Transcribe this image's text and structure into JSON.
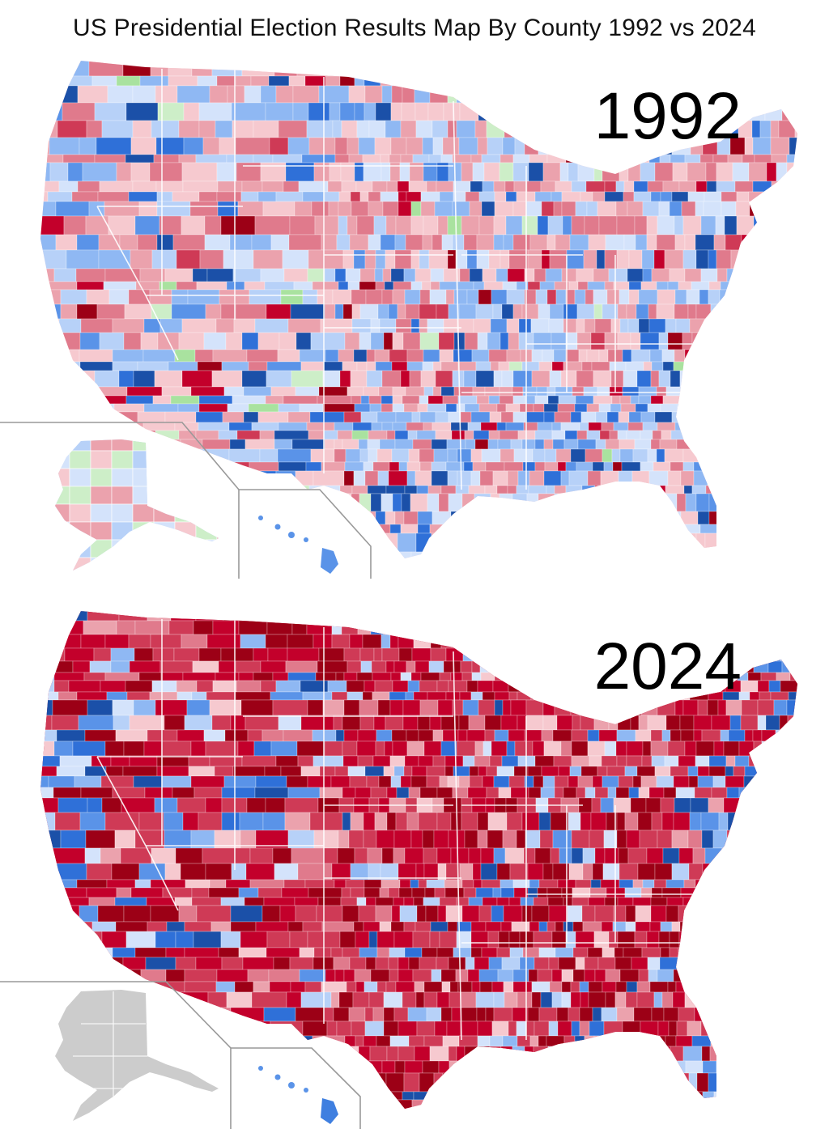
{
  "title": "US Presidential Election Results Map By County 1992 vs 2024",
  "colors": {
    "republican": [
      "#f6c9cf",
      "#eba2ad",
      "#e07a8c",
      "#cf3a56",
      "#c3002b",
      "#9c0016"
    ],
    "democratic": [
      "#d4e3fb",
      "#b7d1f8",
      "#8fb8f3",
      "#5a93e8",
      "#2f70d8",
      "#1b50a8"
    ],
    "other": [
      "#cdeec8",
      "#a9e29f"
    ],
    "no_data": "#cccccc",
    "inset_frame": "#999999"
  },
  "maps": [
    {
      "year": "1992",
      "palette_mix": {
        "republican_light": 0.46,
        "republican_dark": 0.06,
        "democratic_light": 0.34,
        "democratic_dark": 0.12,
        "other": 0.02
      },
      "alaska": "mixed",
      "hawaii": "democratic"
    },
    {
      "year": "2024",
      "palette_mix": {
        "republican_light": 0.16,
        "republican_dark": 0.66,
        "democratic_light": 0.1,
        "democratic_dark": 0.08,
        "other": 0.0
      },
      "alaska": "no_data",
      "hawaii": "democratic"
    }
  ]
}
